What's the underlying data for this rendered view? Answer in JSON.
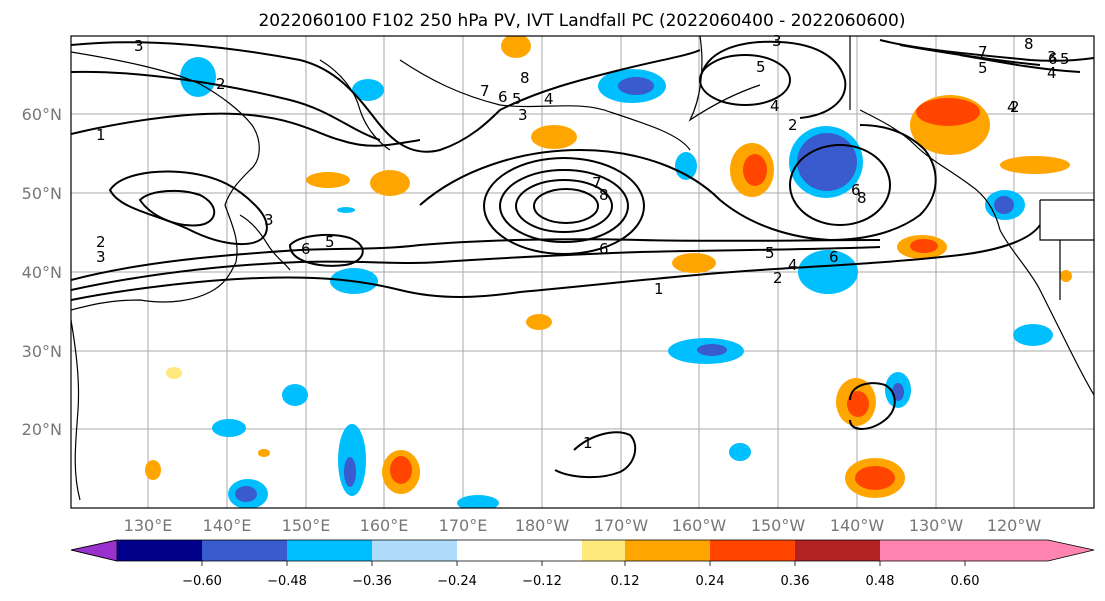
{
  "title": "2022060100 F102 250 hPa PV, IVT Landfall PC (2022060400 - 2022060600)",
  "map": {
    "lat_labels": [
      "60°N",
      "50°N",
      "40°N",
      "30°N",
      "20°N"
    ],
    "lon_labels": [
      "130°E",
      "140°E",
      "150°E",
      "160°E",
      "170°E",
      "180°W",
      "170°W",
      "160°W",
      "150°W",
      "140°W",
      "130°W",
      "120°W"
    ],
    "contour_labels": [
      "3",
      "2",
      "1",
      "2",
      "3",
      "5",
      "6",
      "3",
      "8",
      "7",
      "6",
      "5",
      "4",
      "3",
      "7",
      "8",
      "6",
      "5",
      "4",
      "2",
      "1",
      "3",
      "5",
      "4",
      "2",
      "6",
      "8",
      "5",
      "4",
      "3",
      "6",
      "5",
      "8",
      "7",
      "6",
      "4",
      "2",
      "1"
    ]
  },
  "colorbar": {
    "colors": [
      "#9932cc",
      "#00008b",
      "#3a5bcd",
      "#00bfff",
      "#aedcfa",
      "#ffffff",
      "#ffffff",
      "#ffe87c",
      "#ffa500",
      "#ff4500",
      "#b22222",
      "#ff85b0"
    ],
    "tick_labels": [
      "−0.60",
      "−0.48",
      "−0.36",
      "−0.24",
      "−0.12",
      "0.12",
      "0.24",
      "0.36",
      "0.48",
      "0.60"
    ]
  }
}
